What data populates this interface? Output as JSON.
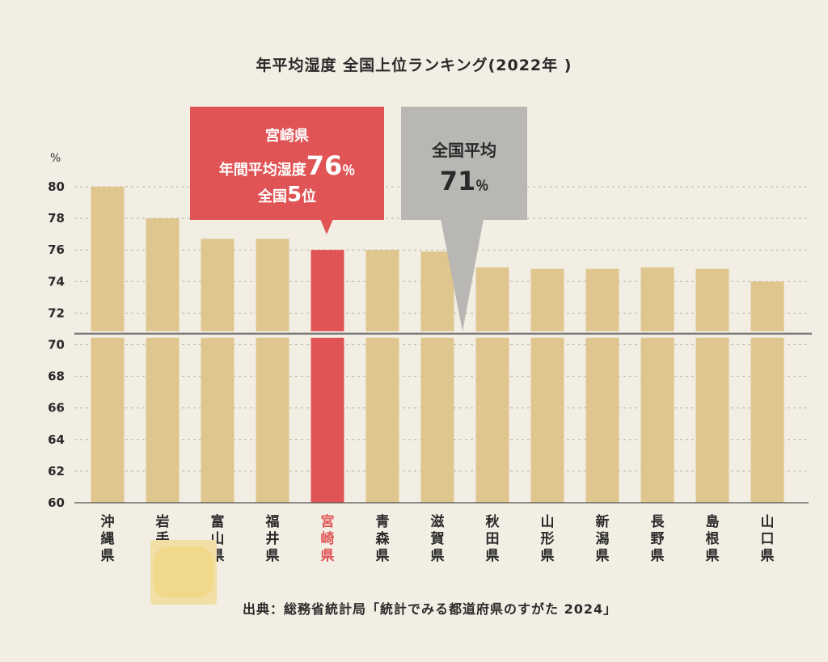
{
  "title": "年平均湿度 全国上位ランキング(2022年 )",
  "source": "出典：総務省統計局「統計でみる都道府県のすがた 2024」",
  "callout_miyazaki": {
    "line1": "宮崎県",
    "line2_prefix": "年間平均湿度",
    "line2_value": "76",
    "line2_unit": "％",
    "line3_prefix": "全国",
    "line3_value": "5",
    "line3_suffix": "位"
  },
  "callout_national": {
    "line1": "全国平均",
    "value": "71",
    "unit": "％"
  },
  "chart_data": {
    "type": "bar",
    "ylabel": "%",
    "ylim": [
      60,
      80
    ],
    "yticks": [
      60,
      62,
      64,
      66,
      68,
      70,
      72,
      74,
      76,
      78,
      80
    ],
    "categories": [
      "沖縄県",
      "岩手県",
      "富山県",
      "福井県",
      "宮崎県",
      "青森県",
      "滋賀県",
      "秋田県",
      "山形県",
      "新潟県",
      "長野県",
      "島根県",
      "山口県"
    ],
    "values": [
      80,
      78,
      76.7,
      76.7,
      76,
      76,
      75.9,
      74.9,
      74.8,
      74.8,
      74.9,
      74.8,
      74
    ],
    "highlight_category": "宮崎県",
    "reference_line": 70.7,
    "grid": true,
    "colors": {
      "bar": "#dfc58e",
      "highlight": "#e05455",
      "highlight_label": "#e05455",
      "reference": "#7a7a7a",
      "grid": "#b9b2a3"
    }
  }
}
